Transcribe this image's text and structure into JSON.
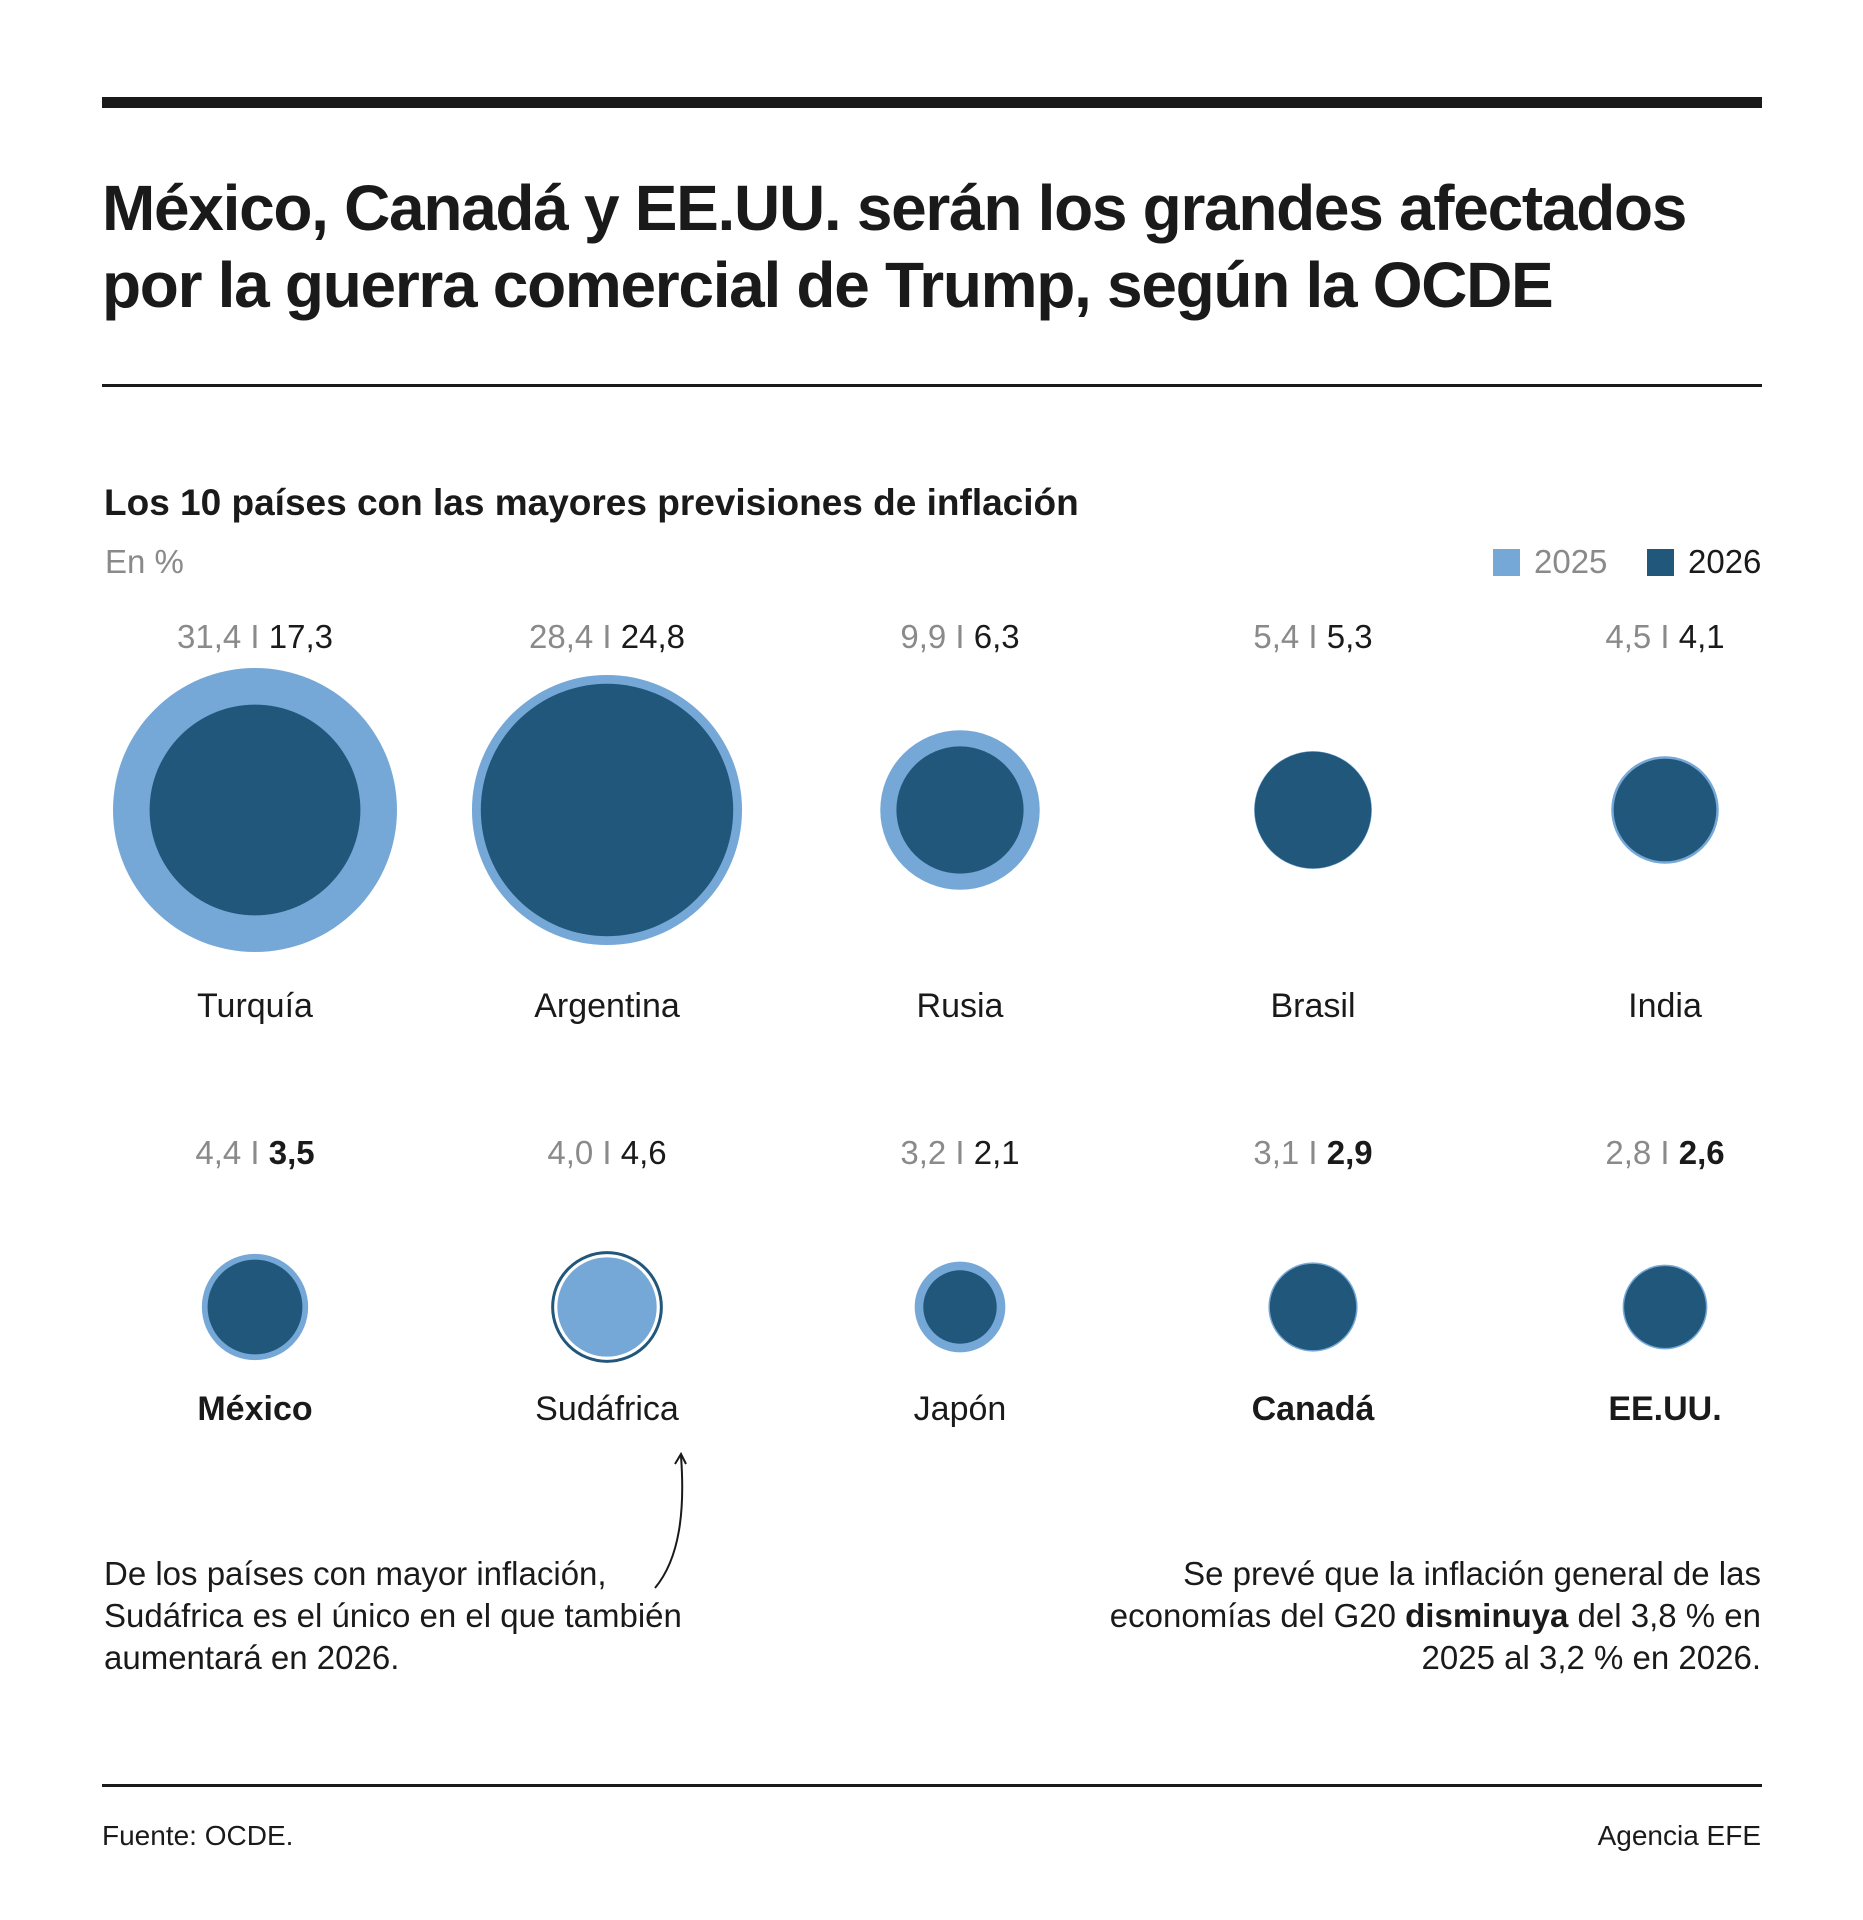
{
  "title": "México, Canadá y EE.UU. serán los grandes afectados por la guerra comercial de Trump, según la OCDE",
  "subtitle": "Los 10 países con las mayores previsiones de inflación",
  "unit": "En %",
  "legend": [
    {
      "label": "2025",
      "color": "#76a8d7"
    },
    {
      "label": "2026",
      "color": "#21577b"
    }
  ],
  "separator": "I",
  "chart_data": {
    "type": "bubble",
    "title": "Los 10 países con las mayores previsiones de inflación",
    "unit": "En %",
    "series": [
      {
        "name": "2025",
        "color": "#76a8d7"
      },
      {
        "name": "2026",
        "color": "#21577b"
      }
    ],
    "countries": [
      {
        "name": "Turquía",
        "v2025": "31,4",
        "v2026": "17,3",
        "bold": false
      },
      {
        "name": "Argentina",
        "v2025": "28,4",
        "v2026": "24,8",
        "bold": false
      },
      {
        "name": "Rusia",
        "v2025": "9,9",
        "v2026": "6,3",
        "bold": false
      },
      {
        "name": "Brasil",
        "v2025": "5,4",
        "v2026": "5,3",
        "bold": false
      },
      {
        "name": "India",
        "v2025": "4,5",
        "v2026": "4,1",
        "bold": false
      },
      {
        "name": "México",
        "v2025": "4,4",
        "v2026": "3,5",
        "bold": true
      },
      {
        "name": "Sudáfrica",
        "v2025": "4,0",
        "v2026": "4,6",
        "bold": false
      },
      {
        "name": "Japón",
        "v2025": "3,2",
        "v2026": "2,1",
        "bold": false
      },
      {
        "name": "Canadá",
        "v2025": "3,1",
        "v2026": "2,9",
        "bold": true
      },
      {
        "name": "EE.UU.",
        "v2025": "2,8",
        "v2026": "2,6",
        "bold": true
      }
    ]
  },
  "notes": {
    "left": "De los países con mayor inflación, Sudáfrica es el único en el que también aumentará en 2026.",
    "right_before": "Se prevé que la inflación general de las economías del G20 ",
    "right_bold": "disminuya",
    "right_after": " del 3,8 % en 2025 al 3,2 % en 2026."
  },
  "footer": {
    "source": "Fuente: OCDE.",
    "agency": "Agencia EFE"
  }
}
